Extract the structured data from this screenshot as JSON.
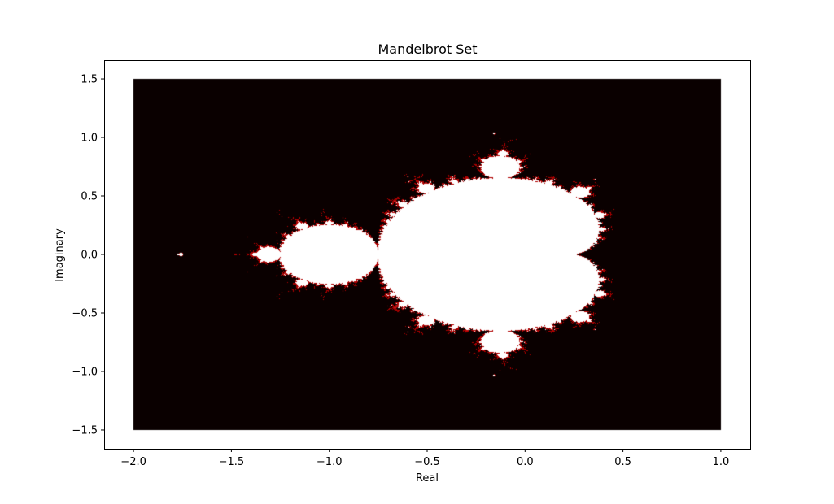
{
  "chart_data": {
    "type": "scatter",
    "title": "Mandelbrot Set",
    "xlabel": "Real",
    "ylabel": "Imaginary",
    "xlim": [
      -2.15,
      1.15
    ],
    "ylim": [
      -1.66,
      1.66
    ],
    "xticks": [
      -2.0,
      -1.5,
      -1.0,
      -0.5,
      0.0,
      0.5,
      1.0
    ],
    "xtick_labels": [
      "−2.0",
      "−1.5",
      "−1.0",
      "−0.5",
      "0.0",
      "0.5",
      "1.0"
    ],
    "yticks": [
      -1.5,
      -1.0,
      -0.5,
      0.0,
      0.5,
      1.0,
      1.5
    ],
    "ytick_labels": [
      "−1.5",
      "−1.0",
      "−0.5",
      "0.0",
      "0.5",
      "1.0",
      "1.5"
    ],
    "grid": false,
    "plotted_region": {
      "re_range": [
        -2.0,
        1.0
      ],
      "im_range": [
        -1.5,
        1.5
      ],
      "max_iterations": 100,
      "escape_radius": 2
    },
    "colors": {
      "escaping_points": "#0a0000",
      "boundary_points": "#b00000",
      "set_members": "#ffffff"
    }
  }
}
